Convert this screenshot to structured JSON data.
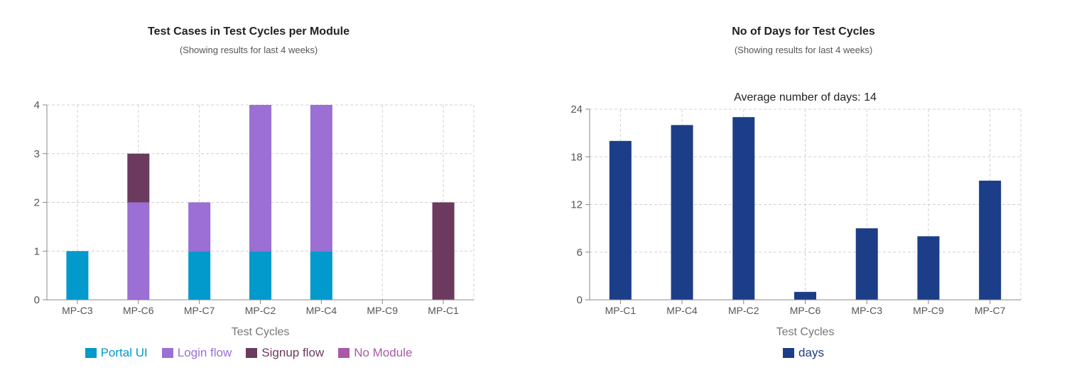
{
  "charts": [
    {
      "title": "Test Cases in Test Cycles per Module",
      "subtitle": "(Showing results for last 4 weeks)"
    },
    {
      "title": "No of Days for Test Cycles",
      "subtitle": "(Showing results for last 4 weeks)"
    }
  ],
  "chart_data": [
    {
      "type": "bar",
      "stacked": true,
      "title": "Test Cases in Test Cycles per Module",
      "subtitle": "(Showing results for last 4 weeks)",
      "xlabel": "Test Cycles",
      "ylabel": "",
      "categories": [
        "MP-C3",
        "MP-C6",
        "MP-C7",
        "MP-C2",
        "MP-C4",
        "MP-C9",
        "MP-C1"
      ],
      "ylim": [
        0,
        4
      ],
      "yticks": [
        0,
        1,
        2,
        3,
        4
      ],
      "grid": true,
      "legend_position": "bottom",
      "series": [
        {
          "name": "Portal UI",
          "color": "#0299cc",
          "values": [
            1,
            0,
            1,
            1,
            1,
            0,
            0
          ]
        },
        {
          "name": "Login flow",
          "color": "#9b6fd4",
          "values": [
            0,
            2,
            1,
            3,
            3,
            0,
            0
          ]
        },
        {
          "name": "Signup flow",
          "color": "#6b3a5e",
          "values": [
            0,
            1,
            0,
            0,
            0,
            0,
            2
          ]
        },
        {
          "name": "No Module",
          "color": "#a85aa8",
          "values": [
            0,
            0,
            0,
            0,
            0,
            0,
            0
          ]
        }
      ]
    },
    {
      "type": "bar",
      "title": "No of Days for Test Cycles",
      "subtitle": "(Showing results for last 4 weeks)",
      "annotation": "Average number of days: 14",
      "xlabel": "Test Cycles",
      "ylabel": "",
      "categories": [
        "MP-C1",
        "MP-C4",
        "MP-C2",
        "MP-C6",
        "MP-C3",
        "MP-C9",
        "MP-C7"
      ],
      "ylim": [
        0,
        24
      ],
      "yticks": [
        0,
        6,
        12,
        18,
        24
      ],
      "grid": true,
      "legend_position": "bottom",
      "series": [
        {
          "name": "days",
          "color": "#1c3d87",
          "values": [
            20,
            22,
            23,
            1,
            9,
            8,
            15
          ]
        }
      ]
    }
  ]
}
